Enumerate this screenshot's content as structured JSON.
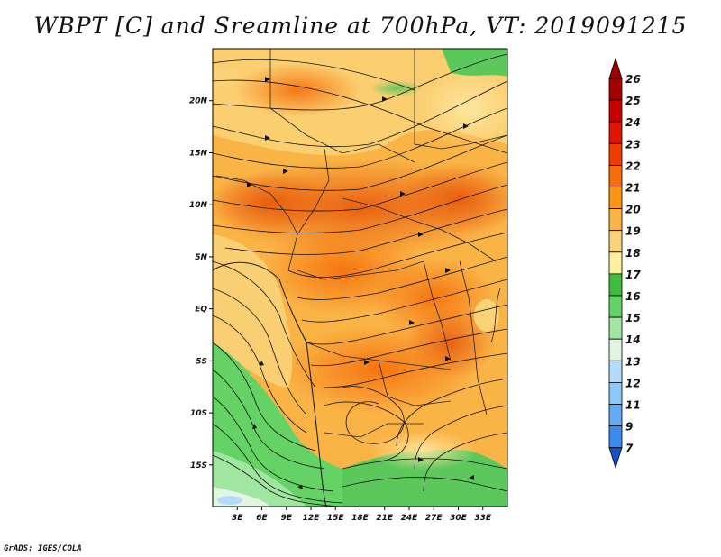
{
  "title": "WBPT [C] and Sreamline at 700hPa, VT: 2019091215",
  "credit": "GrADS: IGES/COLA",
  "map": {
    "variable": "WBPT [C]",
    "level": "700hPa",
    "valid_time": "2019091215",
    "lat_range": [
      -19,
      25
    ],
    "lon_range": [
      0,
      36
    ],
    "lat_ticks": [
      {
        "value": 20,
        "label": "20N"
      },
      {
        "value": 15,
        "label": "15N"
      },
      {
        "value": 10,
        "label": "10N"
      },
      {
        "value": 5,
        "label": "5N"
      },
      {
        "value": 0,
        "label": "EQ"
      },
      {
        "value": -5,
        "label": "5S"
      },
      {
        "value": -10,
        "label": "10S"
      },
      {
        "value": -15,
        "label": "15S"
      }
    ],
    "lon_ticks": [
      {
        "value": 3,
        "label": "3E"
      },
      {
        "value": 6,
        "label": "6E"
      },
      {
        "value": 9,
        "label": "9E"
      },
      {
        "value": 12,
        "label": "12E"
      },
      {
        "value": 15,
        "label": "15E"
      },
      {
        "value": 18,
        "label": "18E"
      },
      {
        "value": 21,
        "label": "21E"
      },
      {
        "value": 24,
        "label": "24E"
      },
      {
        "value": 27,
        "label": "27E"
      },
      {
        "value": 30,
        "label": "30E"
      },
      {
        "value": 33,
        "label": "33E"
      }
    ]
  },
  "colorbar": {
    "levels": [
      {
        "label": "26",
        "color": "#a50000"
      },
      {
        "label": "25",
        "color": "#c80000"
      },
      {
        "label": "24",
        "color": "#e11400"
      },
      {
        "label": "23",
        "color": "#f03c00"
      },
      {
        "label": "22",
        "color": "#f56e0a"
      },
      {
        "label": "21",
        "color": "#fa9614"
      },
      {
        "label": "20",
        "color": "#fab446"
      },
      {
        "label": "19",
        "color": "#fad278"
      },
      {
        "label": "18",
        "color": "#fff0a0"
      },
      {
        "label": "17",
        "color": "#3cbe3c"
      },
      {
        "label": "16",
        "color": "#64d264"
      },
      {
        "label": "15",
        "color": "#a0e6a0"
      },
      {
        "label": "14",
        "color": "#e1f5e1"
      },
      {
        "label": "13",
        "color": "#b4dcfa"
      },
      {
        "label": "12",
        "color": "#8cc8fa"
      },
      {
        "label": "11",
        "color": "#64aaf5"
      },
      {
        "label": "9",
        "color": "#3c8cf0"
      },
      {
        "label": "7",
        "color": "#1e6ee6"
      }
    ],
    "below_color": "#1450c8"
  }
}
